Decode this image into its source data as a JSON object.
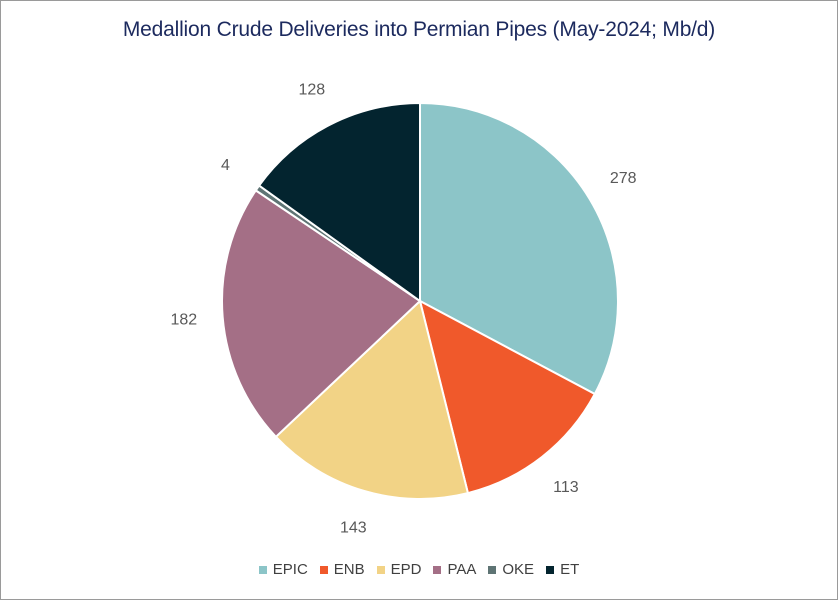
{
  "chart_data": {
    "type": "pie",
    "title": "Medallion Crude Deliveries into Permian Pipes (May-2024; Mb/d)",
    "categories": [
      "EPIC",
      "ENB",
      "EPD",
      "PAA",
      "OKE",
      "ET"
    ],
    "values": [
      278,
      113,
      143,
      182,
      4,
      128
    ],
    "colors": [
      "#8cc5c8",
      "#f0592b",
      "#f2d386",
      "#a46f86",
      "#5e7474",
      "#03242f"
    ],
    "legend_position": "bottom",
    "start_angle_deg": 0,
    "direction": "clockwise"
  }
}
